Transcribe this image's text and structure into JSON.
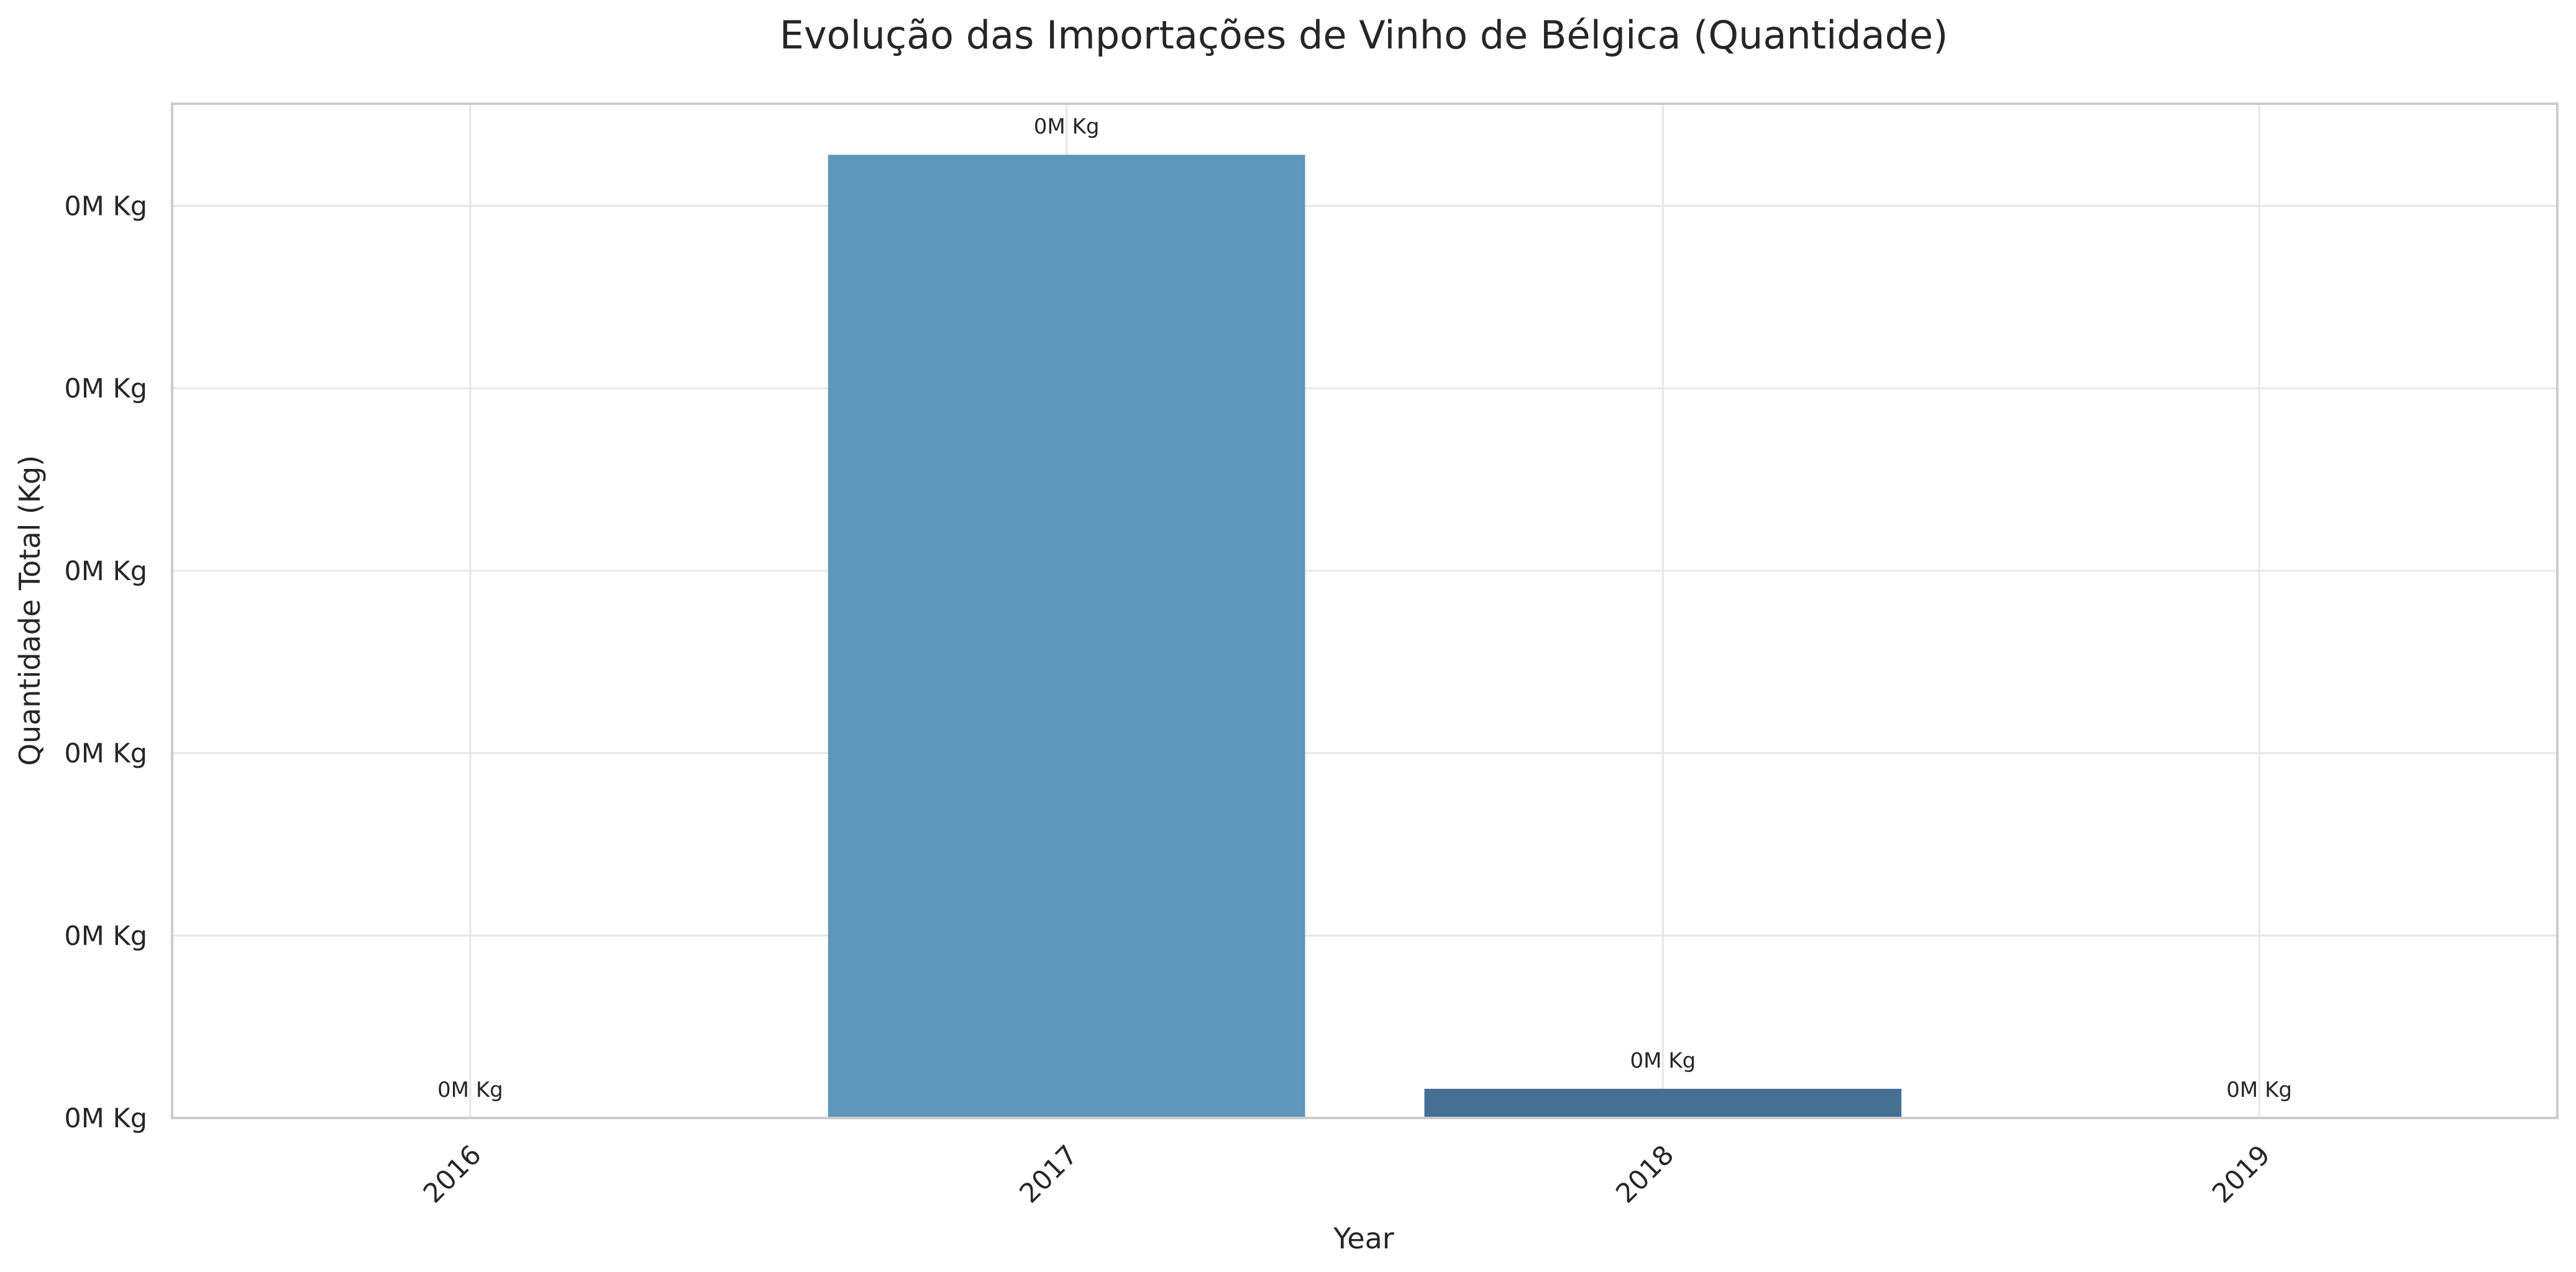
{
  "chart_data": {
    "type": "bar",
    "title": "Evolução das Importações de Vinho de Bélgica (Quantidade)",
    "xlabel": "Year",
    "ylabel": "Quantidade Total (Kg)",
    "categories": [
      "2016",
      "2017",
      "2018",
      "2019"
    ],
    "values": [
      0,
      264,
      8,
      0
    ],
    "value_labels": [
      "0M Kg",
      "0M Kg",
      "0M Kg",
      "0M Kg"
    ],
    "bar_colors": [
      "#5f96bb",
      "#5f96bb",
      "#466f94",
      "#3b5a7e"
    ],
    "yticks": [
      0,
      50,
      100,
      150,
      200,
      250
    ],
    "ytick_labels": [
      "0M Kg",
      "0M Kg",
      "0M Kg",
      "0M Kg",
      "0M Kg",
      "0M Kg"
    ],
    "ylim": [
      0,
      278
    ],
    "grid": true,
    "xtick_rotation": "45 degrees"
  }
}
